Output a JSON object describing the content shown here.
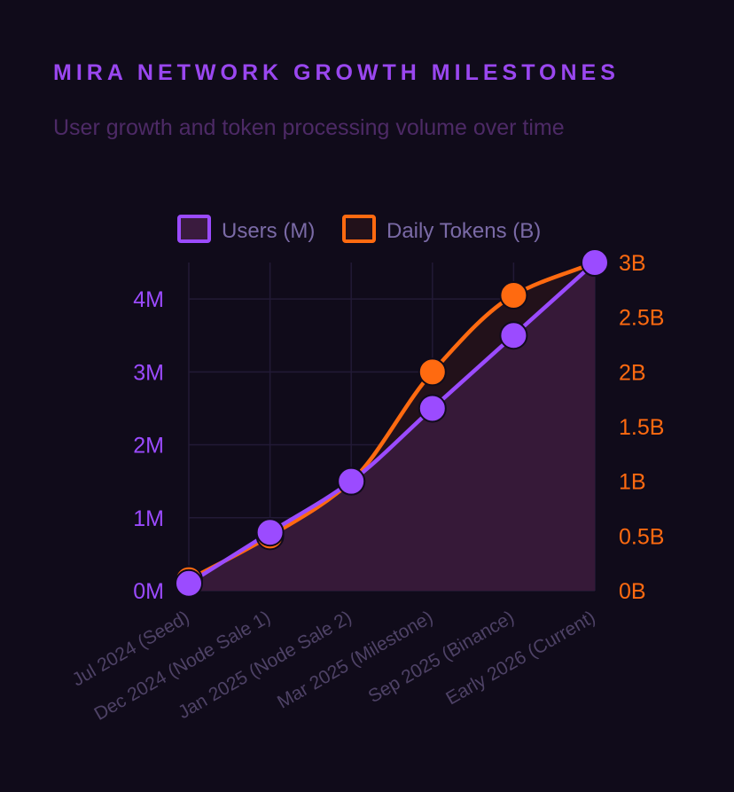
{
  "chart_data": {
    "type": "line",
    "title": "MIRA NETWORK GROWTH MILESTONES",
    "subtitle": "User growth and token processing volume over time",
    "categories": [
      "Jul 2024 (Seed)",
      "Dec 2024 (Node Sale 1)",
      "Jan 2025 (Node Sale 2)",
      "Mar 2025 (Milestone)",
      "Sep 2025 (Binance)",
      "Early 2026 (Current)"
    ],
    "series": [
      {
        "name": "Users (M)",
        "axis": "left",
        "values": [
          0.1,
          0.8,
          1.5,
          2.5,
          3.5,
          4.5
        ],
        "color": "#9b4bff",
        "fill": "#3a1b3e"
      },
      {
        "name": "Daily Tokens (B)",
        "axis": "right",
        "values": [
          0.1,
          0.5,
          1.0,
          2.0,
          2.7,
          3.0
        ],
        "color": "#ff6a10",
        "fill": "#22111a"
      }
    ],
    "y_left": {
      "min": 0,
      "max": 4.5,
      "ticks": [
        0,
        1,
        2,
        3,
        4
      ],
      "tick_labels": [
        "0M",
        "1M",
        "2M",
        "3M",
        "4M"
      ],
      "color": "#9b4bff"
    },
    "y_right": {
      "min": 0,
      "max": 3,
      "ticks": [
        0,
        0.5,
        1,
        1.5,
        2,
        2.5,
        3
      ],
      "tick_labels": [
        "0B",
        "0.5B",
        "1B",
        "1.5B",
        "2B",
        "2.5B",
        "3B"
      ],
      "color": "#ff6a10"
    },
    "legend_position": "top",
    "grid": true
  }
}
